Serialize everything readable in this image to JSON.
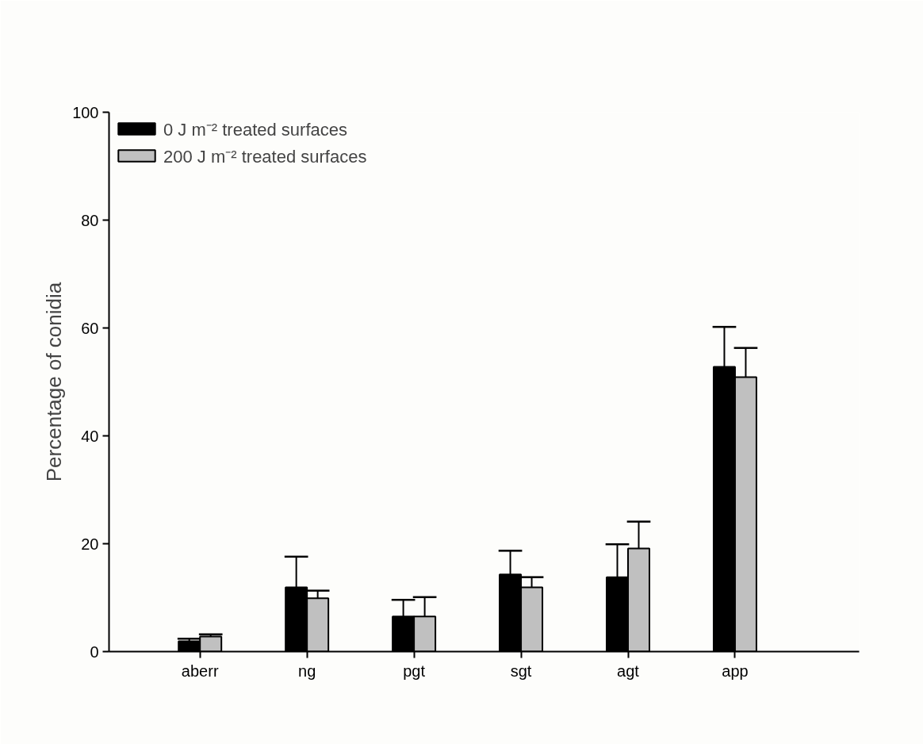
{
  "chart_data": {
    "type": "bar",
    "ylabel": "Percentage of conidia",
    "categories": [
      "aberr",
      "ng",
      "pgt",
      "sgt",
      "agt",
      "app"
    ],
    "series": [
      {
        "name": "0 J m⁻² treated surfaces",
        "color": "#000000",
        "values": [
          1.9,
          11.9,
          6.5,
          14.3,
          13.8,
          52.8
        ],
        "errors": [
          [
            1.9,
            2.4
          ],
          [
            11.9,
            17.6
          ],
          [
            6.5,
            9.6
          ],
          [
            14.3,
            18.7
          ],
          [
            13.8,
            19.9
          ],
          [
            52.8,
            60.2
          ]
        ]
      },
      {
        "name": "200 J m⁻² treated surfaces",
        "color": "#c0c0c0",
        "values": [
          2.8,
          9.9,
          6.5,
          11.9,
          19.1,
          50.9
        ],
        "errors": [
          [
            2.8,
            3.2
          ],
          [
            9.9,
            11.3
          ],
          [
            6.5,
            10.1
          ],
          [
            11.9,
            13.8
          ],
          [
            19.1,
            24.1
          ],
          [
            50.9,
            56.3
          ]
        ]
      }
    ],
    "ylim": [
      0,
      100
    ],
    "yticks": [
      0,
      20,
      40,
      60,
      80,
      100
    ],
    "grid": false,
    "legend": "top left"
  }
}
